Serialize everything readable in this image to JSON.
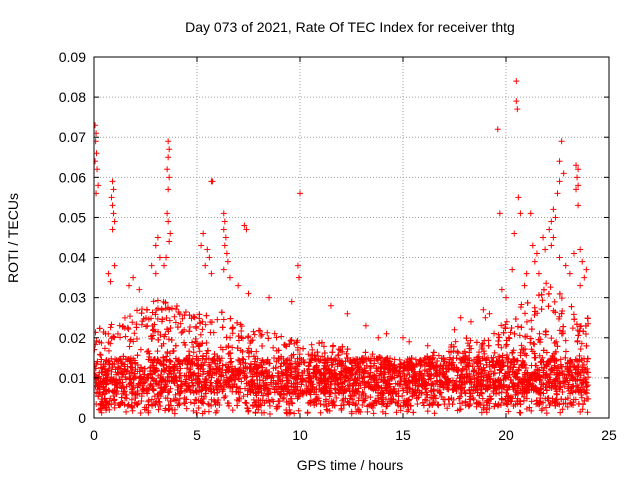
{
  "chart_data": {
    "type": "scatter",
    "title": "Day 073 of 2021, Rate Of TEC Index for receiver thtg",
    "xlabel": "GPS time / hours",
    "ylabel": "ROTI / TECUs",
    "xlim": [
      0,
      25
    ],
    "ylim": [
      0,
      0.09
    ],
    "xticks": [
      0,
      5,
      10,
      15,
      20,
      25
    ],
    "xtick_labels": [
      "0",
      "5",
      "10",
      "15",
      "20",
      "25"
    ],
    "yticks": [
      0,
      0.01,
      0.02,
      0.03,
      0.04,
      0.05,
      0.06,
      0.07,
      0.08,
      0.09
    ],
    "ytick_labels": [
      "0",
      "0.01",
      "0.02",
      "0.03",
      "0.04",
      "0.05",
      "0.06",
      "0.07",
      "0.08",
      "0.09"
    ],
    "grid": true,
    "marker": "+",
    "color": "#ff0000",
    "data_range_hours": [
      0,
      24
    ],
    "envelope": [
      {
        "x": 0,
        "upper": 0.022
      },
      {
        "x": 1,
        "upper": 0.024
      },
      {
        "x": 2,
        "upper": 0.027
      },
      {
        "x": 3,
        "upper": 0.03
      },
      {
        "x": 4,
        "upper": 0.028
      },
      {
        "x": 5,
        "upper": 0.026
      },
      {
        "x": 6,
        "upper": 0.027
      },
      {
        "x": 7,
        "upper": 0.024
      },
      {
        "x": 8,
        "upper": 0.022
      },
      {
        "x": 9,
        "upper": 0.021
      },
      {
        "x": 10,
        "upper": 0.02
      },
      {
        "x": 11,
        "upper": 0.019
      },
      {
        "x": 12,
        "upper": 0.018
      },
      {
        "x": 13,
        "upper": 0.017
      },
      {
        "x": 14,
        "upper": 0.016
      },
      {
        "x": 15,
        "upper": 0.015
      },
      {
        "x": 16,
        "upper": 0.015
      },
      {
        "x": 17,
        "upper": 0.018
      },
      {
        "x": 18,
        "upper": 0.02
      },
      {
        "x": 19,
        "upper": 0.021
      },
      {
        "x": 20,
        "upper": 0.024
      },
      {
        "x": 21,
        "upper": 0.03
      },
      {
        "x": 22,
        "upper": 0.035
      },
      {
        "x": 23,
        "upper": 0.03
      },
      {
        "x": 24,
        "upper": 0.025
      }
    ],
    "points": [
      {
        "x": 0.05,
        "y": 0.073
      },
      {
        "x": 0.1,
        "y": 0.071
      },
      {
        "x": 0.08,
        "y": 0.069
      },
      {
        "x": 0.12,
        "y": 0.066
      },
      {
        "x": 0.05,
        "y": 0.064
      },
      {
        "x": 0.15,
        "y": 0.062
      },
      {
        "x": 0.2,
        "y": 0.058
      },
      {
        "x": 0.1,
        "y": 0.056
      },
      {
        "x": 0.9,
        "y": 0.059
      },
      {
        "x": 0.95,
        "y": 0.057
      },
      {
        "x": 0.85,
        "y": 0.055
      },
      {
        "x": 0.9,
        "y": 0.053
      },
      {
        "x": 0.95,
        "y": 0.051
      },
      {
        "x": 1.0,
        "y": 0.049
      },
      {
        "x": 0.9,
        "y": 0.047
      },
      {
        "x": 0.7,
        "y": 0.036
      },
      {
        "x": 1.0,
        "y": 0.038
      },
      {
        "x": 0.8,
        "y": 0.034
      },
      {
        "x": 1.9,
        "y": 0.035
      },
      {
        "x": 1.7,
        "y": 0.033
      },
      {
        "x": 2.2,
        "y": 0.032
      },
      {
        "x": 3.1,
        "y": 0.045
      },
      {
        "x": 3.0,
        "y": 0.043
      },
      {
        "x": 3.2,
        "y": 0.04
      },
      {
        "x": 2.8,
        "y": 0.038
      },
      {
        "x": 3.0,
        "y": 0.036
      },
      {
        "x": 3.6,
        "y": 0.069
      },
      {
        "x": 3.65,
        "y": 0.067
      },
      {
        "x": 3.6,
        "y": 0.065
      },
      {
        "x": 3.55,
        "y": 0.062
      },
      {
        "x": 3.65,
        "y": 0.06
      },
      {
        "x": 3.6,
        "y": 0.057
      },
      {
        "x": 3.55,
        "y": 0.051
      },
      {
        "x": 3.6,
        "y": 0.049
      },
      {
        "x": 3.7,
        "y": 0.046
      },
      {
        "x": 3.65,
        "y": 0.044
      },
      {
        "x": 3.5,
        "y": 0.04
      },
      {
        "x": 3.4,
        "y": 0.038
      },
      {
        "x": 5.3,
        "y": 0.046
      },
      {
        "x": 5.2,
        "y": 0.043
      },
      {
        "x": 5.5,
        "y": 0.042
      },
      {
        "x": 5.6,
        "y": 0.04
      },
      {
        "x": 5.4,
        "y": 0.038
      },
      {
        "x": 5.7,
        "y": 0.036
      },
      {
        "x": 5.7,
        "y": 0.059
      },
      {
        "x": 5.75,
        "y": 0.059
      },
      {
        "x": 6.3,
        "y": 0.051
      },
      {
        "x": 6.35,
        "y": 0.049
      },
      {
        "x": 6.3,
        "y": 0.047
      },
      {
        "x": 6.4,
        "y": 0.045
      },
      {
        "x": 6.35,
        "y": 0.043
      },
      {
        "x": 6.45,
        "y": 0.041
      },
      {
        "x": 6.5,
        "y": 0.039
      },
      {
        "x": 6.3,
        "y": 0.037
      },
      {
        "x": 6.6,
        "y": 0.035
      },
      {
        "x": 7.3,
        "y": 0.048
      },
      {
        "x": 7.4,
        "y": 0.047
      },
      {
        "x": 7.0,
        "y": 0.033
      },
      {
        "x": 7.5,
        "y": 0.031
      },
      {
        "x": 9.9,
        "y": 0.038
      },
      {
        "x": 9.95,
        "y": 0.035
      },
      {
        "x": 10.0,
        "y": 0.056
      },
      {
        "x": 9.6,
        "y": 0.029
      },
      {
        "x": 8.5,
        "y": 0.03
      },
      {
        "x": 11.5,
        "y": 0.028
      },
      {
        "x": 12.3,
        "y": 0.026
      },
      {
        "x": 13.2,
        "y": 0.023
      },
      {
        "x": 14.2,
        "y": 0.021
      },
      {
        "x": 13.8,
        "y": 0.02
      },
      {
        "x": 15.0,
        "y": 0.02
      },
      {
        "x": 15.3,
        "y": 0.019
      },
      {
        "x": 16.2,
        "y": 0.018
      },
      {
        "x": 17.5,
        "y": 0.022
      },
      {
        "x": 17.8,
        "y": 0.025
      },
      {
        "x": 18.3,
        "y": 0.024
      },
      {
        "x": 18.9,
        "y": 0.027
      },
      {
        "x": 19.2,
        "y": 0.026
      },
      {
        "x": 19.0,
        "y": 0.025
      },
      {
        "x": 19.6,
        "y": 0.072
      },
      {
        "x": 19.7,
        "y": 0.051
      },
      {
        "x": 19.8,
        "y": 0.032
      },
      {
        "x": 20.0,
        "y": 0.03
      },
      {
        "x": 20.5,
        "y": 0.084
      },
      {
        "x": 20.5,
        "y": 0.079
      },
      {
        "x": 20.55,
        "y": 0.077
      },
      {
        "x": 20.6,
        "y": 0.055
      },
      {
        "x": 20.7,
        "y": 0.051
      },
      {
        "x": 20.4,
        "y": 0.046
      },
      {
        "x": 20.3,
        "y": 0.037
      },
      {
        "x": 21.0,
        "y": 0.036
      },
      {
        "x": 21.3,
        "y": 0.043
      },
      {
        "x": 21.5,
        "y": 0.041
      },
      {
        "x": 21.4,
        "y": 0.039
      },
      {
        "x": 21.6,
        "y": 0.036
      },
      {
        "x": 21.8,
        "y": 0.045
      },
      {
        "x": 21.9,
        "y": 0.042
      },
      {
        "x": 22.1,
        "y": 0.047
      },
      {
        "x": 22.2,
        "y": 0.049
      },
      {
        "x": 22.3,
        "y": 0.045
      },
      {
        "x": 22.3,
        "y": 0.052
      },
      {
        "x": 22.4,
        "y": 0.05
      },
      {
        "x": 22.6,
        "y": 0.059
      },
      {
        "x": 22.5,
        "y": 0.056
      },
      {
        "x": 22.2,
        "y": 0.043
      },
      {
        "x": 22.6,
        "y": 0.04
      },
      {
        "x": 22.7,
        "y": 0.069
      },
      {
        "x": 22.6,
        "y": 0.064
      },
      {
        "x": 22.8,
        "y": 0.061
      },
      {
        "x": 22.9,
        "y": 0.038
      },
      {
        "x": 23.1,
        "y": 0.036
      },
      {
        "x": 23.4,
        "y": 0.063
      },
      {
        "x": 23.5,
        "y": 0.062
      },
      {
        "x": 23.45,
        "y": 0.06
      },
      {
        "x": 23.5,
        "y": 0.058
      },
      {
        "x": 23.4,
        "y": 0.057
      },
      {
        "x": 23.5,
        "y": 0.053
      },
      {
        "x": 23.6,
        "y": 0.042
      },
      {
        "x": 23.7,
        "y": 0.039
      },
      {
        "x": 23.3,
        "y": 0.041
      },
      {
        "x": 23.8,
        "y": 0.035
      },
      {
        "x": 23.9,
        "y": 0.037
      },
      {
        "x": 23.6,
        "y": 0.033
      },
      {
        "x": 21.2,
        "y": 0.051
      },
      {
        "x": 20.9,
        "y": 0.033
      }
    ]
  }
}
